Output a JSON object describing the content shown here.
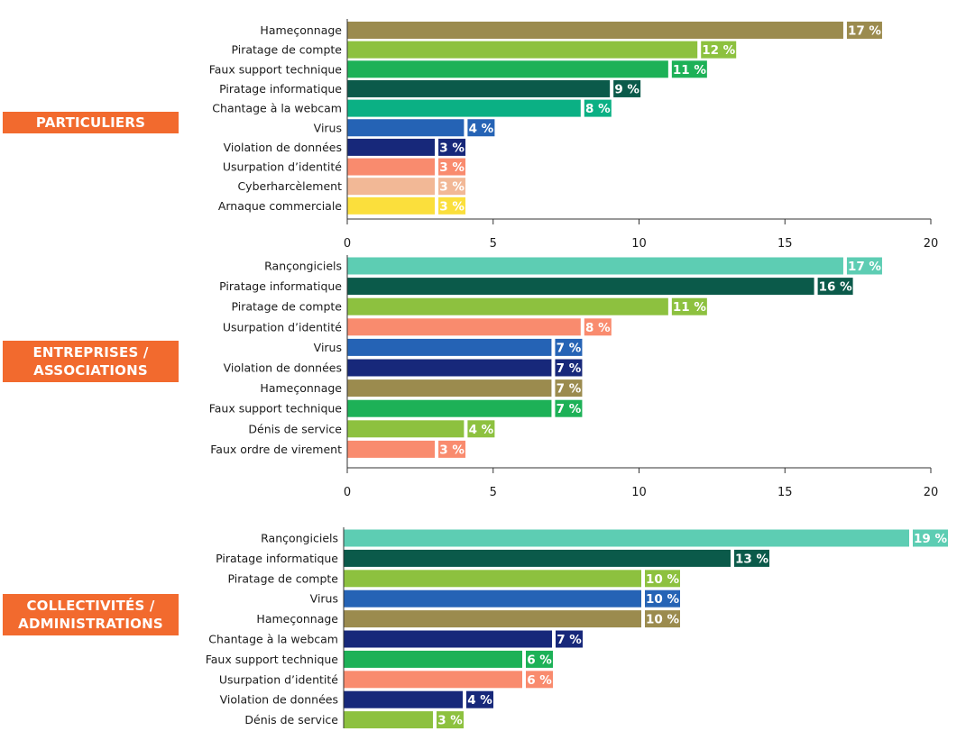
{
  "colors": {
    "phishing": "#9b8b4e",
    "piratage_compte": "#8dc13f",
    "faux_support": "#1db157",
    "piratage_info": "#0b5a4a",
    "chantage_webcam": "#0bb084",
    "virus": "#2563b5",
    "violation": "#17287a",
    "usurpation": "#f98b6e",
    "cyberharcelement": "#f2b896",
    "arnaque": "#fbdf3c",
    "rancongiciels": "#5dcdb3",
    "denis": "#8dc13f",
    "faux_ordre": "#f98b6e",
    "section_tag": "#f26a2e"
  },
  "chart_data": [
    {
      "type": "bar",
      "orientation": "horizontal",
      "section": "PARTICULIERS",
      "section_lines": [
        "PARTICULIERS"
      ],
      "categories": [
        "Hameçonnage",
        "Piratage de compte",
        "Faux support technique",
        "Piratage informatique",
        "Chantage à la webcam",
        "Virus",
        "Violation de données",
        "Usurpation d’identité",
        "Cyberharcèlement",
        "Arnaque commerciale"
      ],
      "values": [
        17,
        12,
        11,
        9,
        8,
        4,
        3,
        3,
        3,
        3
      ],
      "labels": [
        "17 %",
        "12 %",
        "11 %",
        "9 %",
        "8 %",
        "4 %",
        "3 %",
        "3 %",
        "3 %",
        "3 %"
      ],
      "colors": [
        "#9b8b4e",
        "#8dc13f",
        "#1db157",
        "#0b5a4a",
        "#0bb084",
        "#2563b5",
        "#17287a",
        "#f98b6e",
        "#f2b896",
        "#fbdf3c"
      ],
      "xlim": [
        0,
        20
      ],
      "xticks": [
        0,
        5,
        10,
        15,
        20
      ],
      "xtick_labels": [
        "0",
        "5",
        "10",
        "15",
        "20"
      ],
      "show_axis": true,
      "grid": false
    },
    {
      "type": "bar",
      "orientation": "horizontal",
      "section": "ENTREPRISES / ASSOCIATIONS",
      "section_lines": [
        "ENTREPRISES /",
        "ASSOCIATIONS"
      ],
      "categories": [
        "Rançongiciels",
        "Piratage informatique",
        "Piratage de compte",
        "Usurpation d’identité",
        "Virus",
        "Violation de données",
        "Hameçonnage",
        "Faux support technique",
        "Dénis de service",
        "Faux ordre de virement"
      ],
      "values": [
        17,
        16,
        11,
        8,
        7,
        7,
        7,
        7,
        4,
        3
      ],
      "labels": [
        "17 %",
        "16 %",
        "11 %",
        "8 %",
        "7 %",
        "7 %",
        "7 %",
        "7 %",
        "4 %",
        "3 %"
      ],
      "colors": [
        "#5dcdb3",
        "#0b5a4a",
        "#8dc13f",
        "#f98b6e",
        "#2563b5",
        "#17287a",
        "#9b8b4e",
        "#1db157",
        "#8dc13f",
        "#f98b6e"
      ],
      "xlim": [
        0,
        20
      ],
      "xticks": [
        0,
        5,
        10,
        15,
        20
      ],
      "xtick_labels": [
        "0",
        "5",
        "10",
        "15",
        "20"
      ],
      "show_axis": true,
      "grid": false
    },
    {
      "type": "bar",
      "orientation": "horizontal",
      "section": "COLLECTIVITÉS / ADMINISTRATIONS",
      "section_lines": [
        "COLLECTIVITÉS /",
        "ADMINISTRATIONS"
      ],
      "categories": [
        "Rançongiciels",
        "Piratage informatique",
        "Piratage de compte",
        "Virus",
        "Hameçonnage",
        "Chantage à la webcam",
        "Faux support technique",
        "Usurpation d’identité",
        "Violation de données",
        "Dénis de service"
      ],
      "values": [
        19,
        13,
        10,
        10,
        10,
        7,
        6,
        6,
        4,
        3
      ],
      "labels": [
        "19 %",
        "13 %",
        "10 %",
        "10 %",
        "10 %",
        "7 %",
        "6 %",
        "6 %",
        "4 %",
        "3 %"
      ],
      "colors": [
        "#5dcdb3",
        "#0b5a4a",
        "#8dc13f",
        "#2563b5",
        "#9b8b4e",
        "#17287a",
        "#1db157",
        "#f98b6e",
        "#17287a",
        "#8dc13f"
      ],
      "xlim": [
        0,
        20
      ],
      "xticks": [],
      "xtick_labels": [],
      "show_axis": false,
      "grid": false
    }
  ]
}
